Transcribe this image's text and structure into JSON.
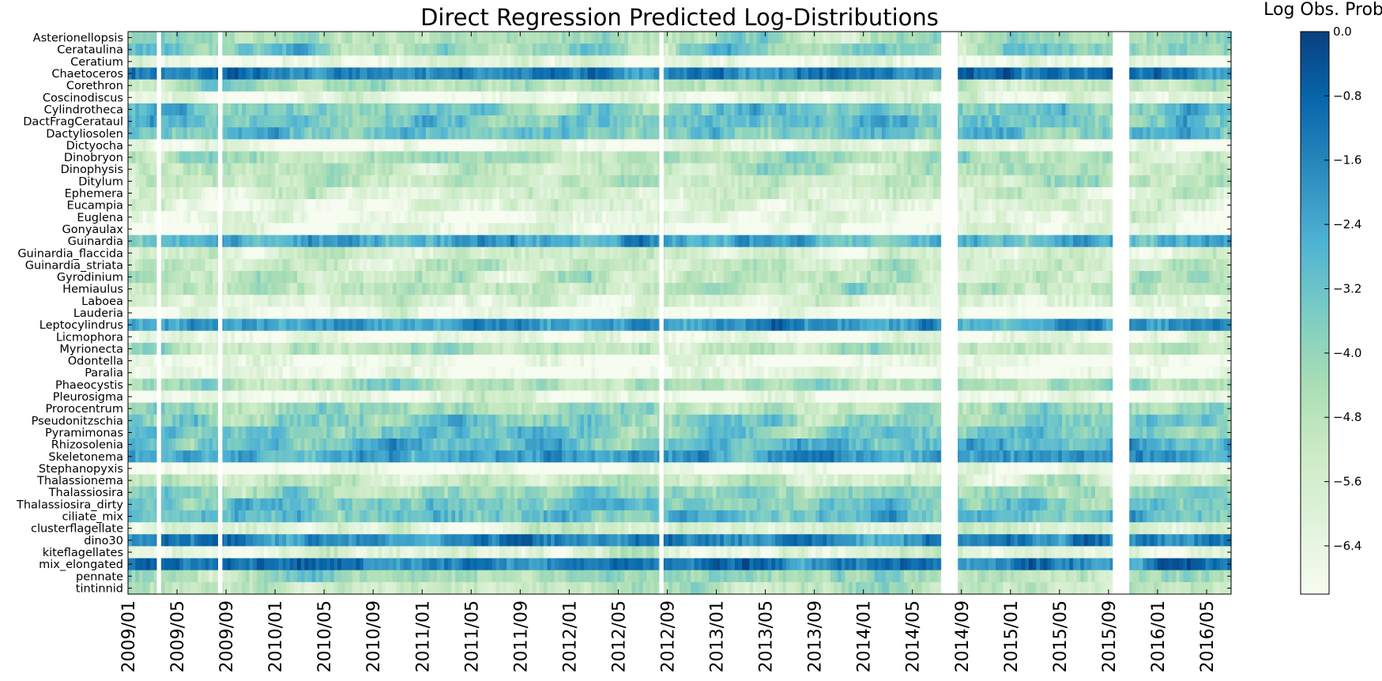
{
  "chart_data": {
    "type": "heatmap",
    "title": "Direct Regression Predicted Log-Distributions",
    "colorbar_label": "Log Obs. Prob",
    "colormap": [
      "#f7fcf0",
      "#e0f3db",
      "#ccebc5",
      "#a8ddb5",
      "#7bccc4",
      "#4eb3d3",
      "#2b8cbe",
      "#0868ac",
      "#084081"
    ],
    "value_range": [
      -7.0,
      0.0
    ],
    "colorbar_ticks": [
      "0.0",
      "−0.8",
      "−1.6",
      "−2.4",
      "−3.2",
      "−4.0",
      "−4.8",
      "−5.6",
      "−6.4"
    ],
    "colorbar_tick_values": [
      0.0,
      -0.8,
      -1.6,
      -2.4,
      -3.2,
      -4.0,
      -4.8,
      -5.6,
      -6.4
    ],
    "x_ticks": [
      "2009/01",
      "2009/05",
      "2009/09",
      "2010/01",
      "2010/05",
      "2010/09",
      "2011/01",
      "2011/05",
      "2011/09",
      "2012/01",
      "2012/05",
      "2012/09",
      "2013/01",
      "2013/05",
      "2013/09",
      "2014/01",
      "2014/05",
      "2014/09",
      "2015/01",
      "2015/05",
      "2015/09",
      "2016/01",
      "2016/05"
    ],
    "x_range": [
      "2009/01",
      "2016/07"
    ],
    "categories": [
      "Asterionellopsis",
      "Cerataulina",
      "Ceratium",
      "Chaetoceros",
      "Corethron",
      "Coscinodiscus",
      "Cylindrotheca",
      "DactFragCerataul",
      "Dactyliosolen",
      "Dictyocha",
      "Dinobryon",
      "Dinophysis",
      "Ditylum",
      "Ephemera",
      "Eucampia",
      "Euglena",
      "Gonyaulax",
      "Guinardia",
      "Guinardia_flaccida",
      "Guinardia_striata",
      "Gyrodinium",
      "Hemiaulus",
      "Laboea",
      "Lauderia",
      "Leptocylindrus",
      "Licmophora",
      "Myrionecta",
      "Odontella",
      "Paralia",
      "Phaeocystis",
      "Pleurosigma",
      "Prorocentrum",
      "Pseudonitzschia",
      "Pyramimonas",
      "Rhizosolenia",
      "Skeletonema",
      "Stephanopyxis",
      "Thalassionema",
      "Thalassiosira",
      "Thalassiosira_dirty",
      "ciliate_mix",
      "clusterflagellate",
      "dino30",
      "kiteflagellates",
      "mix_elongated",
      "pennate",
      "tintinnid"
    ],
    "typical_log_prob": [
      -4.5,
      -3.9,
      -6.6,
      -1.4,
      -5.0,
      -6.3,
      -3.4,
      -3.2,
      -3.3,
      -6.5,
      -4.5,
      -5.0,
      -5.2,
      -5.6,
      -6.0,
      -6.5,
      -6.4,
      -2.5,
      -5.6,
      -5.3,
      -5.1,
      -5.1,
      -5.9,
      -6.7,
      -2.0,
      -6.6,
      -4.9,
      -6.7,
      -6.5,
      -4.6,
      -6.6,
      -4.3,
      -3.7,
      -3.4,
      -2.9,
      -2.1,
      -6.7,
      -5.3,
      -4.2,
      -3.5,
      -3.0,
      -5.7,
      -1.6,
      -6.1,
      -1.3,
      -4.2,
      -5.0
    ],
    "data_gaps": [
      [
        "2009/03",
        "2009/04"
      ],
      [
        "2009/08",
        "2009/09"
      ],
      [
        "2012/08",
        "2012/09"
      ],
      [
        "2014/07",
        "2014/09"
      ],
      [
        "2015/09",
        "2015/11"
      ]
    ]
  }
}
